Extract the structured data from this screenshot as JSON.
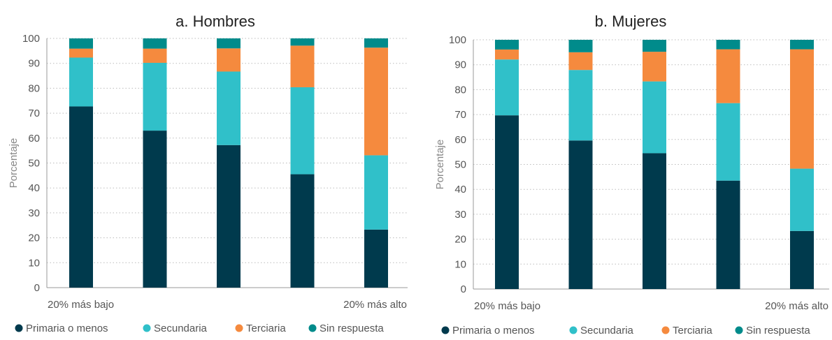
{
  "chart_data": {
    "type": "bar",
    "stacked": true,
    "ylim": [
      0,
      100
    ],
    "yticks": [
      0,
      10,
      20,
      30,
      40,
      50,
      60,
      70,
      80,
      90,
      100
    ],
    "grid": true,
    "legend_position": "bottom",
    "series_meta": [
      {
        "name": "Primaria o menos",
        "color": "#003a4d"
      },
      {
        "name": "Secundaria",
        "color": "#30c0c9"
      },
      {
        "name": "Terciaria",
        "color": "#f58a3e"
      },
      {
        "name": "Sin respuesta",
        "color": "#008b8b"
      }
    ],
    "panels": [
      {
        "title": "a. Hombres",
        "ylabel": "Porcentaje",
        "xlabel_left": "20% más bajo",
        "xlabel_right": "20% más alto",
        "series": [
          {
            "name": "Primaria o menos",
            "values": [
              72.7,
              63,
              57.2,
              45.5,
              23.3
            ]
          },
          {
            "name": "Secundaria",
            "values": [
              19.6,
              27.2,
              29.5,
              34.9,
              29.8
            ]
          },
          {
            "name": "Terciaria",
            "values": [
              3.6,
              5.7,
              9.3,
              16.7,
              43.2
            ]
          },
          {
            "name": "Sin respuesta",
            "values": [
              4.1,
              4.1,
              4,
              2.9,
              3.7
            ]
          }
        ]
      },
      {
        "title": "b. Mujeres",
        "ylabel": "Porcentaje",
        "xlabel_left": "20% más bajo",
        "xlabel_right": "20% más alto",
        "series": [
          {
            "name": "Primaria o menos",
            "values": [
              69.7,
              59.6,
              54.5,
              43.5,
              23.3
            ]
          },
          {
            "name": "Secundaria",
            "values": [
              22.4,
              28.3,
              28.8,
              31.1,
              25
            ]
          },
          {
            "name": "Terciaria",
            "values": [
              4,
              7.1,
              11.9,
              21.6,
              47.9
            ]
          },
          {
            "name": "Sin respuesta",
            "values": [
              3.9,
              5,
              4.8,
              3.8,
              3.8
            ]
          }
        ]
      }
    ]
  }
}
